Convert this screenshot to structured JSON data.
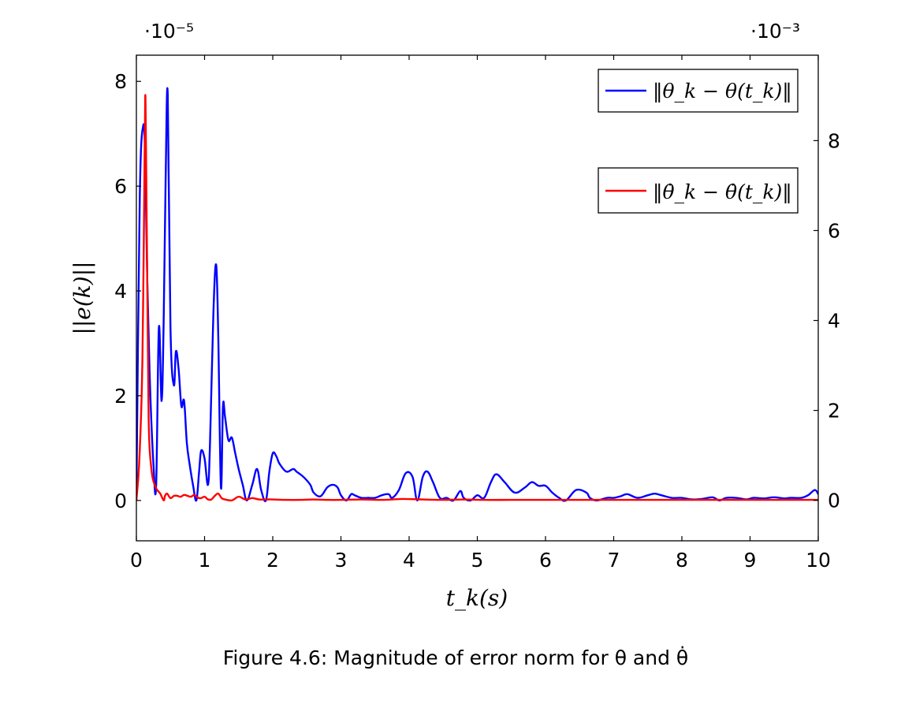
{
  "chart_data": {
    "type": "line",
    "xlabel": "t_k(s)",
    "ylabel": "||e(k)||",
    "xlim": [
      0,
      10
    ],
    "ylim_left": [
      -0.77,
      8.5
    ],
    "ylim_right": [
      -0.9,
      9.9
    ],
    "left_scale_label": "·10⁻⁵",
    "right_scale_label": "·10⁻³",
    "x_ticks": [
      "0",
      "1",
      "2",
      "3",
      "4",
      "5",
      "6",
      "7",
      "8",
      "9",
      "10"
    ],
    "y_ticks_left": [
      "0",
      "2",
      "4",
      "6",
      "8"
    ],
    "y_ticks_right": [
      "0",
      "2",
      "4",
      "6",
      "8"
    ],
    "legend_placement": "top-right",
    "grid": false,
    "series": [
      {
        "name": "‖θ_k − θ(t_k)‖",
        "color": "#0000ff",
        "axis": "left",
        "x": [
          0,
          0.05,
          0.1,
          0.13,
          0.16,
          0.2,
          0.25,
          0.29,
          0.33,
          0.37,
          0.4,
          0.43,
          0.46,
          0.5,
          0.55,
          0.58,
          0.62,
          0.66,
          0.7,
          0.74,
          0.78,
          0.83,
          0.88,
          0.92,
          0.95,
          1.0,
          1.05,
          1.08,
          1.13,
          1.17,
          1.2,
          1.24,
          1.27,
          1.3,
          1.35,
          1.4,
          1.45,
          1.5,
          1.56,
          1.62,
          1.7,
          1.77,
          1.83,
          1.9,
          1.95,
          2.0,
          2.05,
          2.1,
          2.2,
          2.3,
          2.35,
          2.45,
          2.55,
          2.6,
          2.7,
          2.8,
          2.88,
          2.95,
          3.0,
          3.08,
          3.15,
          3.2,
          3.3,
          3.4,
          3.5,
          3.6,
          3.7,
          3.75,
          3.85,
          3.95,
          4.05,
          4.12,
          4.2,
          4.27,
          4.35,
          4.45,
          4.55,
          4.65,
          4.75,
          4.8,
          4.9,
          5.0,
          5.1,
          5.2,
          5.28,
          5.4,
          5.55,
          5.7,
          5.8,
          5.9,
          6.0,
          6.1,
          6.2,
          6.3,
          6.45,
          6.6,
          6.65,
          6.75,
          6.9,
          7.0,
          7.1,
          7.2,
          7.35,
          7.5,
          7.6,
          7.7,
          7.85,
          8.0,
          8.15,
          8.3,
          8.45,
          8.55,
          8.65,
          8.8,
          8.95,
          9.05,
          9.2,
          9.35,
          9.5,
          9.6,
          9.75,
          9.85,
          9.95,
          10.0
        ],
        "values": [
          0,
          5.8,
          7.15,
          6.5,
          4.2,
          2.2,
          0.7,
          0.3,
          3.3,
          1.9,
          3.4,
          6.2,
          7.75,
          3.3,
          2.2,
          2.85,
          2.5,
          1.8,
          1.9,
          1.1,
          0.7,
          0.3,
          0.0,
          0.55,
          0.95,
          0.8,
          0.3,
          1.1,
          3.6,
          4.5,
          3.2,
          0.25,
          1.8,
          1.6,
          1.15,
          1.2,
          0.9,
          0.6,
          0.3,
          0.0,
          0.3,
          0.6,
          0.2,
          0.0,
          0.55,
          0.9,
          0.85,
          0.7,
          0.55,
          0.6,
          0.55,
          0.45,
          0.3,
          0.15,
          0.08,
          0.25,
          0.3,
          0.25,
          0.1,
          0.0,
          0.12,
          0.1,
          0.05,
          0.05,
          0.05,
          0.1,
          0.12,
          0.05,
          0.2,
          0.52,
          0.45,
          0.0,
          0.45,
          0.55,
          0.35,
          0.05,
          0.05,
          0.0,
          0.18,
          0.05,
          0.0,
          0.1,
          0.05,
          0.35,
          0.5,
          0.35,
          0.15,
          0.25,
          0.35,
          0.28,
          0.28,
          0.15,
          0.05,
          0.0,
          0.2,
          0.15,
          0.05,
          0.0,
          0.05,
          0.05,
          0.08,
          0.12,
          0.05,
          0.1,
          0.13,
          0.1,
          0.05,
          0.05,
          0.02,
          0.03,
          0.06,
          0.0,
          0.05,
          0.05,
          0.02,
          0.05,
          0.04,
          0.06,
          0.04,
          0.05,
          0.05,
          0.1,
          0.2,
          0.12
        ]
      },
      {
        "name": "‖θ̇_k − θ̇(t_k)‖",
        "color": "#ff0000",
        "axis": "right",
        "x": [
          0,
          0.04,
          0.08,
          0.1,
          0.12,
          0.13,
          0.14,
          0.16,
          0.18,
          0.22,
          0.28,
          0.35,
          0.4,
          0.42,
          0.45,
          0.5,
          0.55,
          0.6,
          0.65,
          0.7,
          0.75,
          0.8,
          0.85,
          0.9,
          0.95,
          1.0,
          1.05,
          1.1,
          1.15,
          1.2,
          1.25,
          1.3,
          1.4,
          1.5,
          1.6,
          1.7,
          1.8,
          1.9,
          2.0,
          2.2,
          2.4,
          2.6,
          2.8,
          3.0,
          3.3,
          3.6,
          3.9,
          4.2,
          4.5,
          4.8,
          5.1,
          5.5,
          6.0,
          6.5,
          7.0,
          7.5,
          8.0,
          8.5,
          9.0,
          9.5,
          10.0
        ],
        "values": [
          0,
          0.8,
          2.5,
          4.5,
          7.5,
          9.0,
          8.0,
          4.8,
          1.8,
          0.7,
          0.3,
          0.15,
          0.0,
          0.1,
          0.15,
          0.05,
          0.1,
          0.1,
          0.08,
          0.12,
          0.1,
          0.08,
          0.12,
          0.06,
          0.05,
          0.08,
          0.02,
          0.02,
          0.1,
          0.15,
          0.05,
          0.02,
          0.0,
          0.08,
          0.02,
          0.05,
          0.02,
          0.02,
          0.02,
          0.01,
          0.01,
          0.02,
          0.01,
          0.01,
          0.02,
          0.01,
          0.03,
          0.02,
          0.01,
          0.02,
          0.01,
          0.01,
          0.01,
          0.01,
          0.01,
          0.01,
          0.01,
          0.01,
          0.01,
          0.01,
          0.01
        ]
      }
    ],
    "caption": "Figure 4.6: Magnitude of error norm for θ and θ̇"
  }
}
